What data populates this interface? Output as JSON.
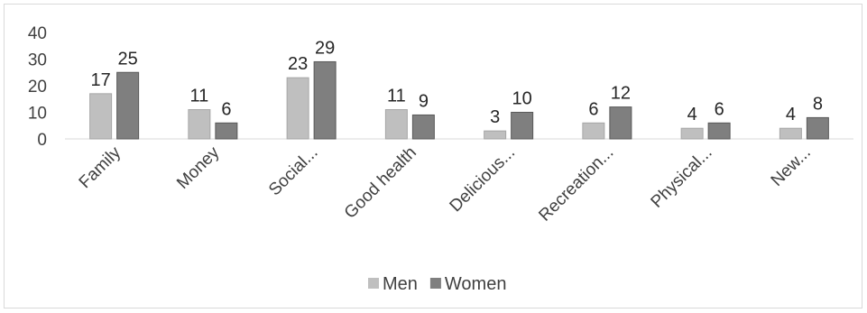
{
  "chart_data": {
    "type": "bar",
    "title": "",
    "xlabel": "",
    "ylabel": "",
    "ylim": [
      0,
      40
    ],
    "yticks": [
      0,
      10,
      20,
      30,
      40
    ],
    "grid": false,
    "legend_position": "bottom",
    "categories": [
      "Family",
      "Money",
      "Social...",
      "Good health",
      "Delicious...",
      "Recreation...",
      "Physical...",
      "New..."
    ],
    "series": [
      {
        "name": "Men",
        "values": [
          17,
          11,
          23,
          11,
          3,
          6,
          4,
          4
        ],
        "color": "#bfbfbf"
      },
      {
        "name": "Women",
        "values": [
          25,
          6,
          29,
          9,
          10,
          12,
          6,
          8
        ],
        "color": "#7f7f7f"
      }
    ]
  }
}
